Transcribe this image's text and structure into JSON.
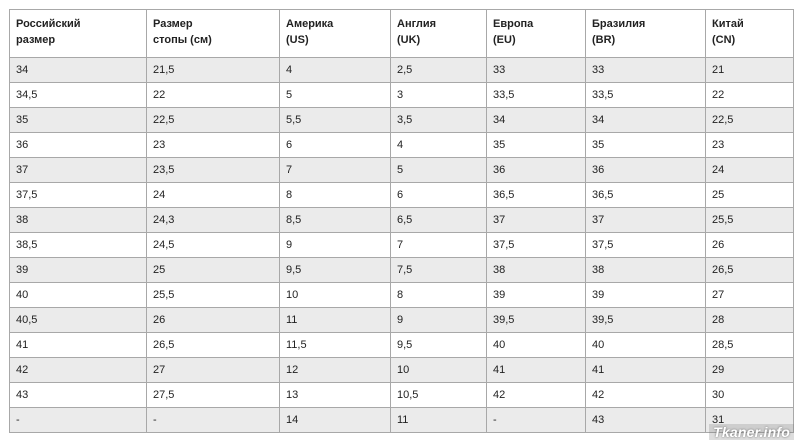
{
  "table": {
    "headers": [
      [
        "Российский",
        "размер"
      ],
      [
        "Размер",
        "стопы (см)"
      ],
      [
        "Америка",
        "(US)"
      ],
      [
        "Англия",
        "(UK)"
      ],
      [
        "Европа",
        "(EU)"
      ],
      [
        "Бразилия",
        "(BR)"
      ],
      [
        "Китай",
        "(CN)"
      ]
    ],
    "rows": [
      [
        "34",
        "21,5",
        "4",
        "2,5",
        "33",
        "33",
        "21"
      ],
      [
        "34,5",
        "22",
        "5",
        "3",
        "33,5",
        "33,5",
        "22"
      ],
      [
        "35",
        "22,5",
        "5,5",
        "3,5",
        "34",
        "34",
        "22,5"
      ],
      [
        "36",
        "23",
        "6",
        "4",
        "35",
        "35",
        "23"
      ],
      [
        "37",
        "23,5",
        "7",
        "5",
        "36",
        "36",
        "24"
      ],
      [
        "37,5",
        "24",
        "8",
        "6",
        "36,5",
        "36,5",
        "25"
      ],
      [
        "38",
        "24,3",
        "8,5",
        "6,5",
        "37",
        "37",
        "25,5"
      ],
      [
        "38,5",
        "24,5",
        "9",
        "7",
        "37,5",
        "37,5",
        "26"
      ],
      [
        "39",
        "25",
        "9,5",
        "7,5",
        "38",
        "38",
        "26,5"
      ],
      [
        "40",
        "25,5",
        "10",
        "8",
        "39",
        "39",
        "27"
      ],
      [
        "40,5",
        "26",
        "11",
        "9",
        "39,5",
        "39,5",
        "28"
      ],
      [
        "41",
        "26,5",
        "11,5",
        "9,5",
        "40",
        "40",
        "28,5"
      ],
      [
        "42",
        "27",
        "12",
        "10",
        "41",
        "41",
        "29"
      ],
      [
        "43",
        "27,5",
        "13",
        "10,5",
        "42",
        "42",
        "30"
      ],
      [
        "-",
        "-",
        "14",
        "11",
        "-",
        "43",
        "31"
      ]
    ]
  },
  "watermark": "Tkaner.info"
}
